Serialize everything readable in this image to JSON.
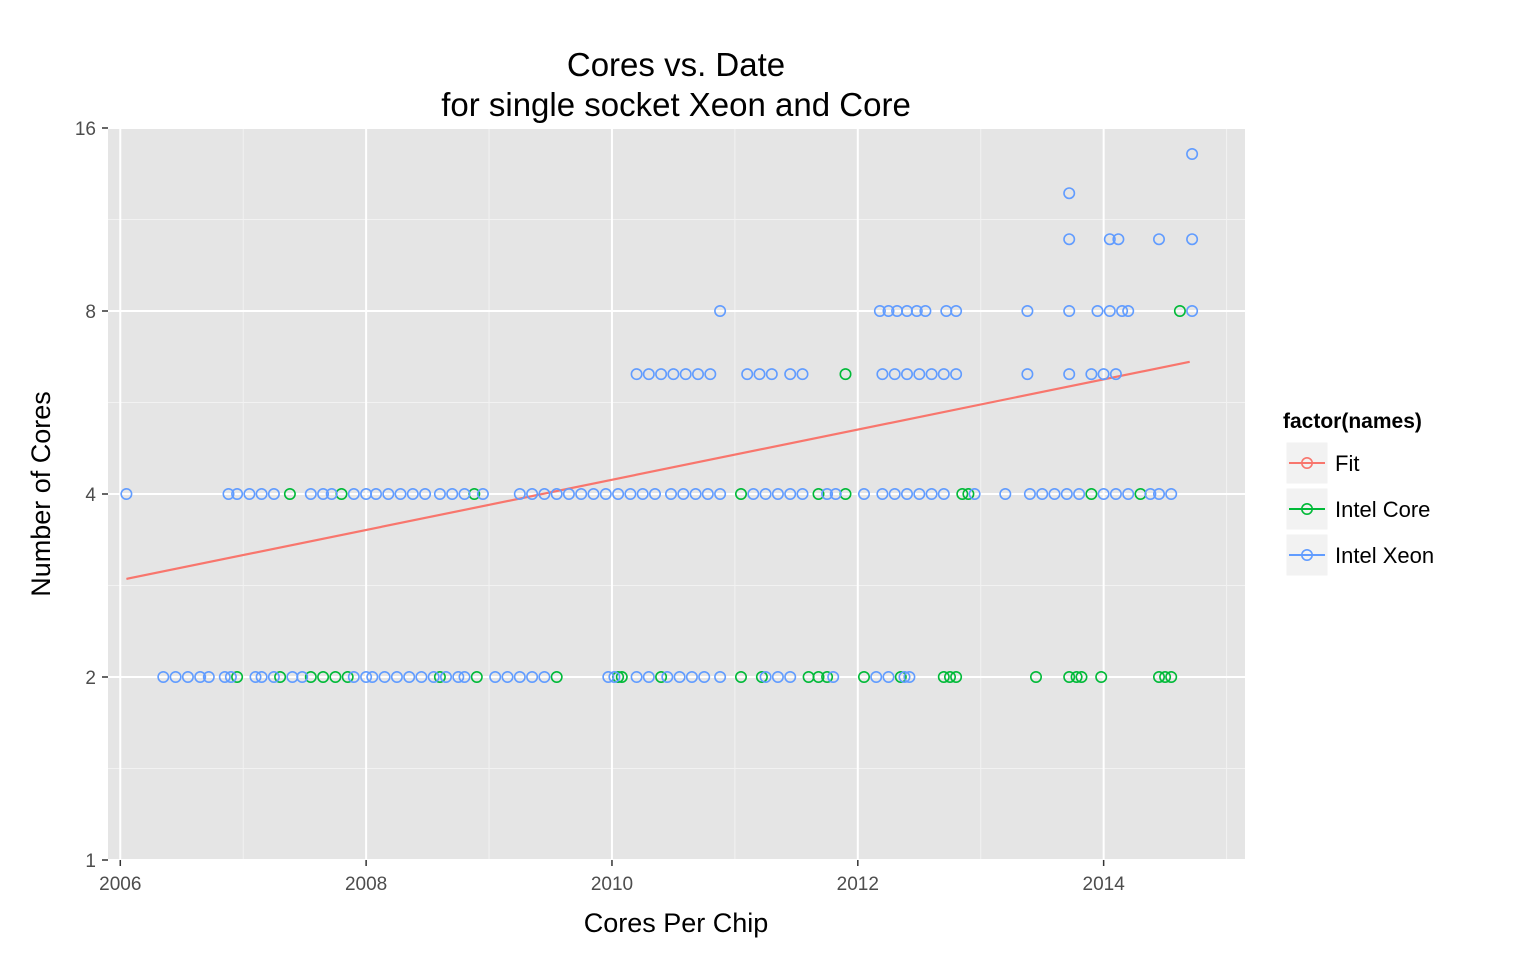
{
  "chart_data": {
    "type": "scatter",
    "title_lines": [
      "Cores vs. Date",
      "for single socket Xeon and Core"
    ],
    "xlabel": "Cores Per Chip",
    "ylabel": "Number of Cores",
    "x_scale": "linear",
    "y_scale": "log2",
    "xlim": [
      2005.9,
      2015.15
    ],
    "ylim": [
      1,
      16
    ],
    "x_ticks": [
      2006,
      2008,
      2010,
      2012,
      2014
    ],
    "x_tick_labels": [
      "2006",
      "2008",
      "2010",
      "2012",
      "2014"
    ],
    "y_ticks": [
      1,
      2,
      4,
      8,
      16
    ],
    "y_tick_labels": [
      "1",
      "2",
      "4",
      "8",
      "16"
    ],
    "grid": true,
    "legend": {
      "title": "factor(names)",
      "position": "right",
      "entries": [
        {
          "label": "Fit",
          "color": "#F8766D"
        },
        {
          "label": "Intel Core",
          "color": "#00BA38"
        },
        {
          "label": "Intel Xeon",
          "color": "#619CFF"
        }
      ]
    },
    "series": [
      {
        "name": "Fit",
        "kind": "line",
        "color": "#F8766D",
        "points": [
          [
            2006.05,
            2.9
          ],
          [
            2014.7,
            6.6
          ]
        ]
      },
      {
        "name": "Intel Core",
        "kind": "points",
        "color": "#00BA38",
        "points": [
          [
            2006.95,
            2
          ],
          [
            2007.3,
            2
          ],
          [
            2007.55,
            2
          ],
          [
            2007.65,
            2
          ],
          [
            2007.75,
            2
          ],
          [
            2007.85,
            2
          ],
          [
            2008.6,
            2
          ],
          [
            2008.9,
            2
          ],
          [
            2009.55,
            2
          ],
          [
            2010.05,
            2
          ],
          [
            2010.08,
            2
          ],
          [
            2010.4,
            2
          ],
          [
            2011.05,
            2
          ],
          [
            2011.22,
            2
          ],
          [
            2011.6,
            2
          ],
          [
            2011.68,
            2
          ],
          [
            2011.75,
            2
          ],
          [
            2012.05,
            2
          ],
          [
            2012.35,
            2
          ],
          [
            2012.7,
            2
          ],
          [
            2012.75,
            2
          ],
          [
            2012.8,
            2
          ],
          [
            2013.45,
            2
          ],
          [
            2013.72,
            2
          ],
          [
            2013.78,
            2
          ],
          [
            2013.82,
            2
          ],
          [
            2013.98,
            2
          ],
          [
            2014.45,
            2
          ],
          [
            2014.5,
            2
          ],
          [
            2014.55,
            2
          ],
          [
            2007.38,
            4
          ],
          [
            2007.8,
            4
          ],
          [
            2008.88,
            4
          ],
          [
            2011.05,
            4
          ],
          [
            2011.68,
            4
          ],
          [
            2011.9,
            4
          ],
          [
            2012.85,
            4
          ],
          [
            2012.9,
            4
          ],
          [
            2013.9,
            4
          ],
          [
            2014.3,
            4
          ],
          [
            2011.9,
            6.3
          ],
          [
            2014.62,
            8
          ]
        ]
      },
      {
        "name": "Intel Xeon",
        "kind": "points",
        "color": "#619CFF",
        "points": [
          [
            2006.35,
            2
          ],
          [
            2006.45,
            2
          ],
          [
            2006.55,
            2
          ],
          [
            2006.65,
            2
          ],
          [
            2006.72,
            2
          ],
          [
            2006.85,
            2
          ],
          [
            2006.9,
            2
          ],
          [
            2007.1,
            2
          ],
          [
            2007.15,
            2
          ],
          [
            2007.25,
            2
          ],
          [
            2007.4,
            2
          ],
          [
            2007.48,
            2
          ],
          [
            2007.9,
            2
          ],
          [
            2008.0,
            2
          ],
          [
            2008.05,
            2
          ],
          [
            2008.15,
            2
          ],
          [
            2008.25,
            2
          ],
          [
            2008.35,
            2
          ],
          [
            2008.45,
            2
          ],
          [
            2008.55,
            2
          ],
          [
            2008.65,
            2
          ],
          [
            2008.75,
            2
          ],
          [
            2008.8,
            2
          ],
          [
            2009.05,
            2
          ],
          [
            2009.15,
            2
          ],
          [
            2009.25,
            2
          ],
          [
            2009.35,
            2
          ],
          [
            2009.45,
            2
          ],
          [
            2009.97,
            2
          ],
          [
            2010.02,
            2
          ],
          [
            2010.2,
            2
          ],
          [
            2010.3,
            2
          ],
          [
            2010.45,
            2
          ],
          [
            2010.55,
            2
          ],
          [
            2010.65,
            2
          ],
          [
            2010.75,
            2
          ],
          [
            2010.88,
            2
          ],
          [
            2011.25,
            2
          ],
          [
            2011.35,
            2
          ],
          [
            2011.45,
            2
          ],
          [
            2011.8,
            2
          ],
          [
            2012.15,
            2
          ],
          [
            2012.25,
            2
          ],
          [
            2012.38,
            2
          ],
          [
            2012.42,
            2
          ],
          [
            2006.05,
            4
          ],
          [
            2006.88,
            4
          ],
          [
            2006.95,
            4
          ],
          [
            2007.05,
            4
          ],
          [
            2007.15,
            4
          ],
          [
            2007.25,
            4
          ],
          [
            2007.55,
            4
          ],
          [
            2007.65,
            4
          ],
          [
            2007.72,
            4
          ],
          [
            2007.9,
            4
          ],
          [
            2008.0,
            4
          ],
          [
            2008.08,
            4
          ],
          [
            2008.18,
            4
          ],
          [
            2008.28,
            4
          ],
          [
            2008.38,
            4
          ],
          [
            2008.48,
            4
          ],
          [
            2008.6,
            4
          ],
          [
            2008.7,
            4
          ],
          [
            2008.8,
            4
          ],
          [
            2008.95,
            4
          ],
          [
            2009.25,
            4
          ],
          [
            2009.35,
            4
          ],
          [
            2009.45,
            4
          ],
          [
            2009.55,
            4
          ],
          [
            2009.65,
            4
          ],
          [
            2009.75,
            4
          ],
          [
            2009.85,
            4
          ],
          [
            2009.95,
            4
          ],
          [
            2010.05,
            4
          ],
          [
            2010.15,
            4
          ],
          [
            2010.25,
            4
          ],
          [
            2010.35,
            4
          ],
          [
            2010.48,
            4
          ],
          [
            2010.58,
            4
          ],
          [
            2010.68,
            4
          ],
          [
            2010.78,
            4
          ],
          [
            2010.88,
            4
          ],
          [
            2011.15,
            4
          ],
          [
            2011.25,
            4
          ],
          [
            2011.35,
            4
          ],
          [
            2011.45,
            4
          ],
          [
            2011.55,
            4
          ],
          [
            2011.75,
            4
          ],
          [
            2011.82,
            4
          ],
          [
            2012.05,
            4
          ],
          [
            2012.2,
            4
          ],
          [
            2012.3,
            4
          ],
          [
            2012.4,
            4
          ],
          [
            2012.5,
            4
          ],
          [
            2012.6,
            4
          ],
          [
            2012.7,
            4
          ],
          [
            2012.95,
            4
          ],
          [
            2013.2,
            4
          ],
          [
            2013.4,
            4
          ],
          [
            2013.5,
            4
          ],
          [
            2013.6,
            4
          ],
          [
            2013.7,
            4
          ],
          [
            2013.8,
            4
          ],
          [
            2014.0,
            4
          ],
          [
            2014.1,
            4
          ],
          [
            2014.2,
            4
          ],
          [
            2014.38,
            4
          ],
          [
            2014.45,
            4
          ],
          [
            2014.55,
            4
          ],
          [
            2010.2,
            6.3
          ],
          [
            2010.3,
            6.3
          ],
          [
            2010.4,
            6.3
          ],
          [
            2010.5,
            6.3
          ],
          [
            2010.6,
            6.3
          ],
          [
            2010.7,
            6.3
          ],
          [
            2010.8,
            6.3
          ],
          [
            2011.1,
            6.3
          ],
          [
            2011.2,
            6.3
          ],
          [
            2011.3,
            6.3
          ],
          [
            2011.45,
            6.3
          ],
          [
            2011.55,
            6.3
          ],
          [
            2012.2,
            6.3
          ],
          [
            2012.3,
            6.3
          ],
          [
            2012.4,
            6.3
          ],
          [
            2012.5,
            6.3
          ],
          [
            2012.6,
            6.3
          ],
          [
            2012.7,
            6.3
          ],
          [
            2012.8,
            6.3
          ],
          [
            2013.38,
            6.3
          ],
          [
            2013.72,
            6.3
          ],
          [
            2013.9,
            6.3
          ],
          [
            2014.0,
            6.3
          ],
          [
            2014.1,
            6.3
          ],
          [
            2010.88,
            8
          ],
          [
            2012.18,
            8
          ],
          [
            2012.25,
            8
          ],
          [
            2012.32,
            8
          ],
          [
            2012.4,
            8
          ],
          [
            2012.48,
            8
          ],
          [
            2012.55,
            8
          ],
          [
            2012.72,
            8
          ],
          [
            2012.8,
            8
          ],
          [
            2013.38,
            8
          ],
          [
            2013.72,
            8
          ],
          [
            2013.95,
            8
          ],
          [
            2014.05,
            8
          ],
          [
            2014.15,
            8
          ],
          [
            2014.2,
            8
          ],
          [
            2014.72,
            8
          ],
          [
            2013.72,
            10.5
          ],
          [
            2014.05,
            10.5
          ],
          [
            2014.12,
            10.5
          ],
          [
            2014.45,
            10.5
          ],
          [
            2014.72,
            10.5
          ],
          [
            2013.72,
            12.5
          ],
          [
            2014.72,
            14.5
          ]
        ]
      }
    ]
  }
}
